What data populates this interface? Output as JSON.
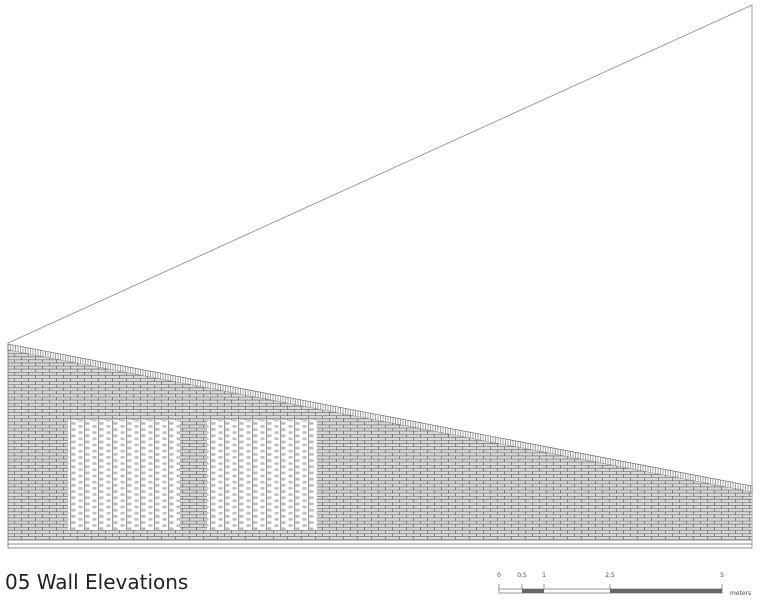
{
  "title": "05 Wall Elevations",
  "scale": {
    "labels": [
      "0",
      "0,5",
      "1",
      "2,5",
      "5"
    ],
    "unit": "meters"
  }
}
